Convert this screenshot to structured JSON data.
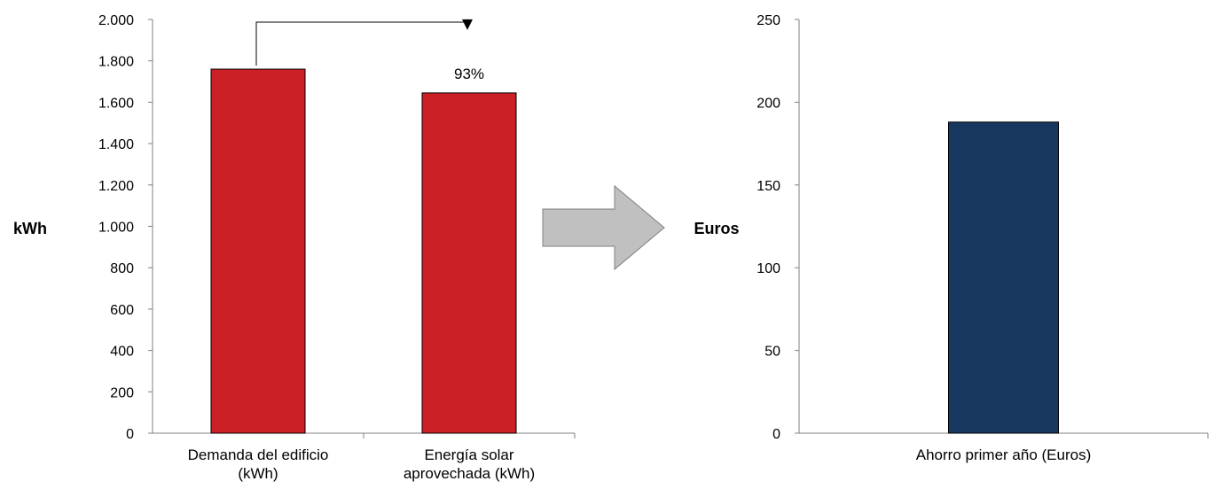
{
  "chart_data": [
    {
      "type": "bar",
      "ylabel": "kWh",
      "categories": [
        [
          "Demanda del edificio",
          "(kWh)"
        ],
        [
          "Energía solar",
          "aprovechada (kWh)"
        ]
      ],
      "values": [
        1760,
        1645
      ],
      "ylim": [
        0,
        2000
      ],
      "yticks": [
        0,
        200,
        400,
        600,
        800,
        1000,
        1200,
        1400,
        1600,
        1800,
        2000
      ],
      "ytick_labels": [
        "0",
        "200",
        "400",
        "600",
        "800",
        "1.000",
        "1.200",
        "1.400",
        "1.600",
        "1.800",
        "2.000"
      ],
      "bar_color": "#cc2027",
      "annotation": {
        "text": "93%",
        "from_category": 0,
        "to_category": 1
      }
    },
    {
      "type": "bar",
      "ylabel": "Euros",
      "categories": [
        [
          "Ahorro primer año (Euros)"
        ]
      ],
      "values": [
        188
      ],
      "ylim": [
        0,
        250
      ],
      "yticks": [
        0,
        50,
        100,
        150,
        200,
        250
      ],
      "ytick_labels": [
        "0",
        "50",
        "100",
        "150",
        "200",
        "250"
      ],
      "bar_color": "#17375e"
    }
  ],
  "arrow_color": "#c0c0c0",
  "legend": "none",
  "grid": false
}
